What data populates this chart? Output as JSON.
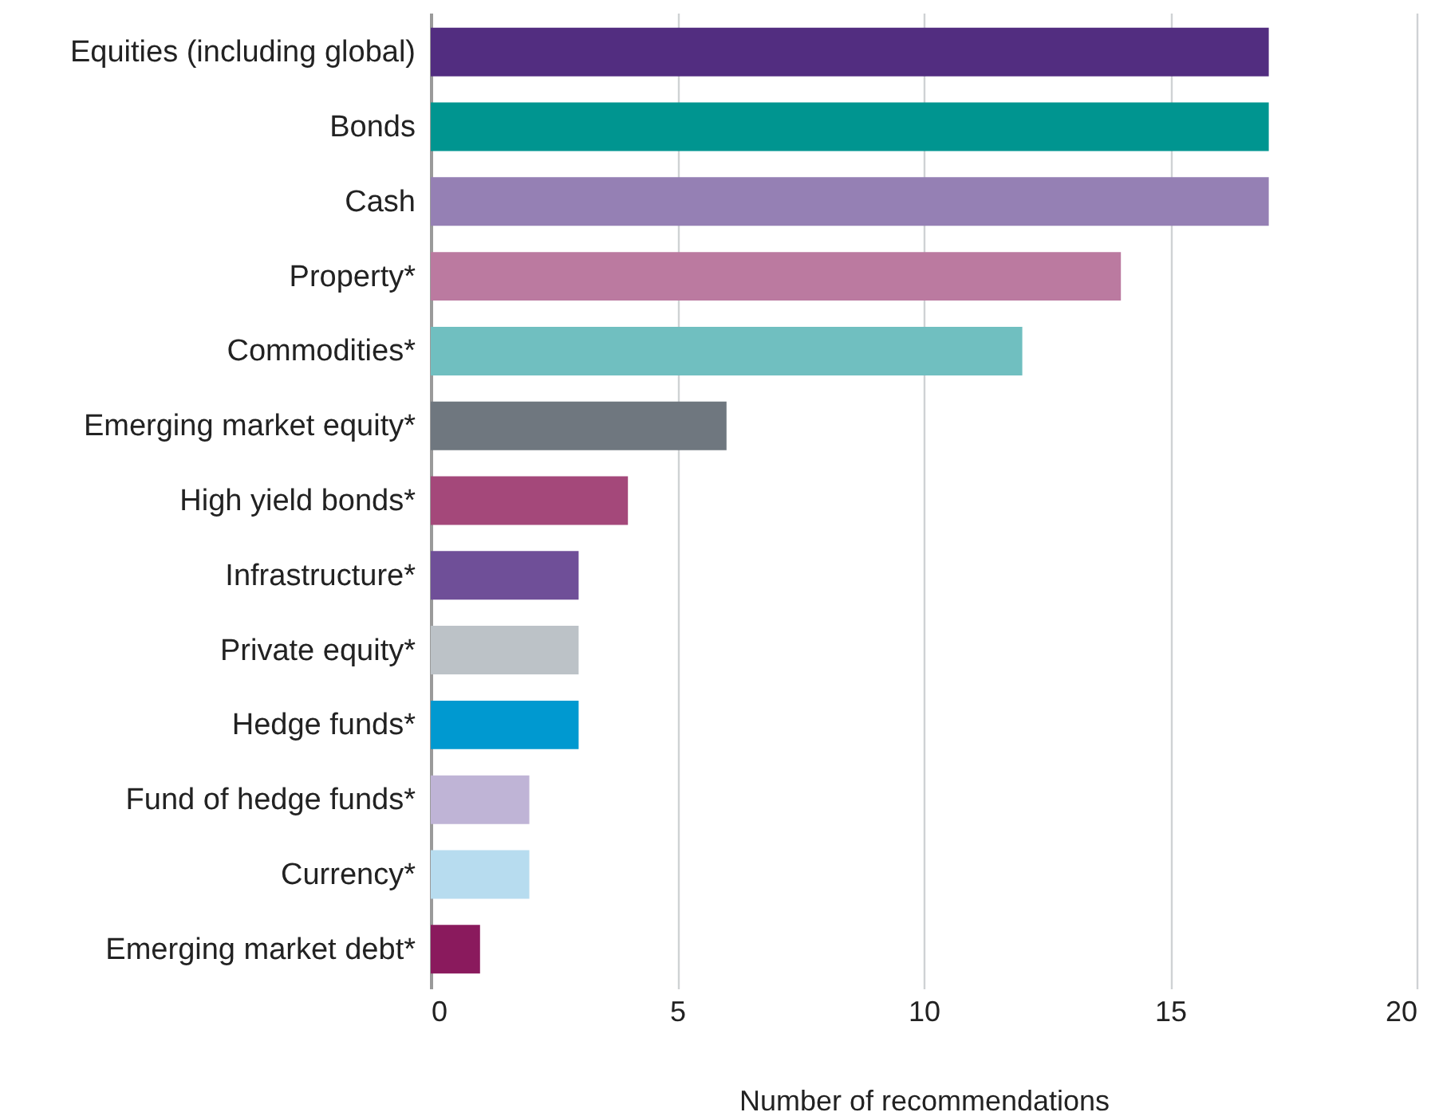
{
  "chart_data": {
    "type": "bar",
    "orientation": "horizontal",
    "xlabel": "Number of recommendations",
    "categories": [
      "Equities (including global)",
      "Bonds",
      "Cash",
      "Property*",
      "Commodities*",
      "Emerging market equity*",
      "High yield bonds*",
      "Infrastructure*",
      "Private equity*",
      "Hedge funds*",
      "Fund of hedge funds*",
      "Currency*",
      "Emerging market debt*"
    ],
    "values": [
      17,
      17,
      17,
      14,
      12,
      6,
      4,
      3,
      3,
      3,
      2,
      2,
      1
    ],
    "colors": [
      "#522d80",
      "#009590",
      "#9580b4",
      "#bb7aa0",
      "#70bfc0",
      "#6f777f",
      "#a4487a",
      "#6f4f98",
      "#bcc2c7",
      "#0099d0",
      "#bfb4d6",
      "#b7dcef",
      "#8a1a5d"
    ],
    "xlim": [
      0,
      20
    ],
    "xticks": [
      0,
      5,
      10,
      15,
      20
    ],
    "grid": "x"
  }
}
